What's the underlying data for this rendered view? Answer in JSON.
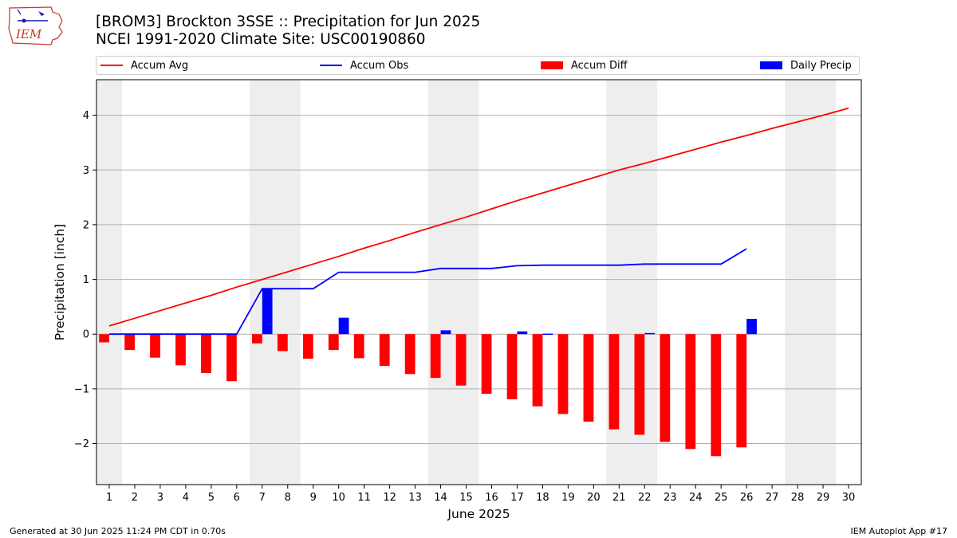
{
  "header": {
    "title": "[BROM3] Brockton 3SSE :: Precipitation for Jun 2025",
    "subtitle": "NCEI 1991-2020 Climate Site: USC00190860",
    "logo_text": "IEM"
  },
  "legend": {
    "items": [
      {
        "label": "Accum Avg",
        "color": "#ff0000",
        "kind": "line"
      },
      {
        "label": "Accum Obs",
        "color": "#0000ff",
        "kind": "line"
      },
      {
        "label": "Accum Diff",
        "color": "#ff0000",
        "kind": "bar"
      },
      {
        "label": "Daily Precip",
        "color": "#0000ff",
        "kind": "bar"
      }
    ]
  },
  "footer": {
    "left": "Generated at 30 Jun 2025 11:24 PM CDT in 0.70s",
    "right": "IEM Autoplot App #17"
  },
  "chart_data": {
    "type": "bar",
    "xlabel": "June 2025",
    "ylabel": "Precipitation [inch]",
    "xlim": [
      0.5,
      30.5
    ],
    "ylim": [
      -2.75,
      4.65
    ],
    "yticks": [
      -2,
      -1,
      0,
      1,
      2,
      3,
      4
    ],
    "ytick_labels": [
      "−2",
      "−1",
      "0",
      "1",
      "2",
      "3",
      "4"
    ],
    "xticks": [
      1,
      2,
      3,
      4,
      5,
      6,
      7,
      8,
      9,
      10,
      11,
      12,
      13,
      14,
      15,
      16,
      17,
      18,
      19,
      20,
      21,
      22,
      23,
      24,
      25,
      26,
      27,
      28,
      29,
      30
    ],
    "grid": "horizontal",
    "weekend_shading": [
      [
        0.5,
        1.5
      ],
      [
        6.5,
        8.5
      ],
      [
        13.5,
        15.5
      ],
      [
        20.5,
        22.5
      ],
      [
        27.5,
        29.5
      ]
    ],
    "days": [
      1,
      2,
      3,
      4,
      5,
      6,
      7,
      8,
      9,
      10,
      11,
      12,
      13,
      14,
      15,
      16,
      17,
      18,
      19,
      20,
      21,
      22,
      23,
      24,
      25,
      26,
      27,
      28,
      29,
      30
    ],
    "series": [
      {
        "name": "Accum Avg",
        "kind": "line",
        "color": "#ff0000",
        "values": [
          0.15,
          0.29,
          0.43,
          0.57,
          0.71,
          0.86,
          1.0,
          1.14,
          1.28,
          1.42,
          1.57,
          1.71,
          1.86,
          2.0,
          2.14,
          2.29,
          2.44,
          2.58,
          2.72,
          2.86,
          3.0,
          3.12,
          3.25,
          3.38,
          3.51,
          3.63,
          3.76,
          3.88,
          4.0,
          4.13
        ]
      },
      {
        "name": "Accum Obs",
        "kind": "line",
        "color": "#0000ff",
        "values": [
          0,
          0,
          0,
          0,
          0,
          0,
          0.83,
          0.83,
          0.83,
          1.13,
          1.13,
          1.13,
          1.13,
          1.2,
          1.2,
          1.2,
          1.25,
          1.26,
          1.26,
          1.26,
          1.26,
          1.28,
          1.28,
          1.28,
          1.28,
          1.56,
          null,
          null,
          null,
          null
        ]
      },
      {
        "name": "Accum Diff",
        "kind": "bar",
        "color": "#ff0000",
        "values": [
          -0.15,
          -0.29,
          -0.43,
          -0.57,
          -0.71,
          -0.86,
          -0.17,
          -0.31,
          -0.45,
          -0.29,
          -0.44,
          -0.58,
          -0.73,
          -0.8,
          -0.94,
          -1.09,
          -1.19,
          -1.32,
          -1.46,
          -1.6,
          -1.74,
          -1.84,
          -1.97,
          -2.1,
          -2.23,
          -2.07,
          null,
          null,
          null,
          null
        ]
      },
      {
        "name": "Daily Precip",
        "kind": "bar",
        "color": "#0000ff",
        "values": [
          0,
          0,
          0,
          0,
          0,
          0,
          0.83,
          0,
          0,
          0.3,
          0,
          0,
          0,
          0.07,
          0,
          0,
          0.05,
          0.01,
          0,
          0,
          0,
          0.02,
          0,
          0,
          0,
          0.28,
          null,
          null,
          null,
          null
        ]
      }
    ]
  }
}
